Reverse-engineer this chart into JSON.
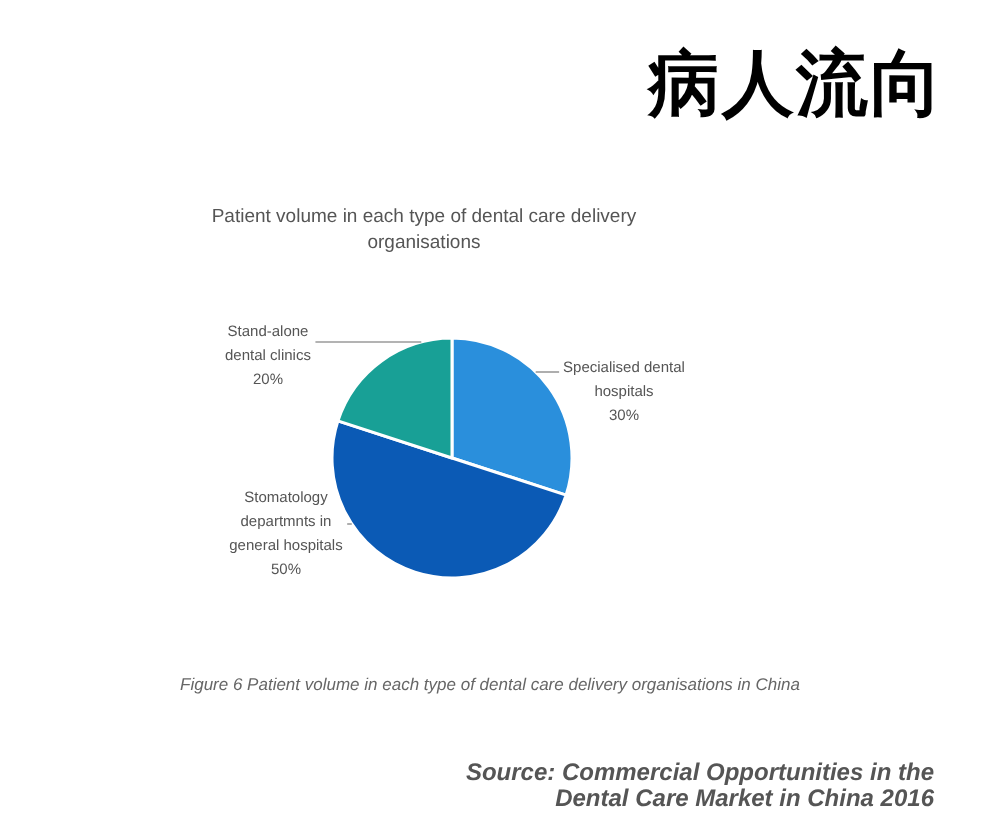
{
  "chart_data": {
    "type": "pie",
    "title": "病人流向",
    "subtitle": "Patient volume in each type of dental care delivery\norganisations",
    "categories": [
      "Specialised dental\nhospitals",
      "Stomatology\ndepartmnts in\ngeneral hospitals",
      "Stand-alone\ndental clinics"
    ],
    "values": [
      30,
      50,
      20
    ],
    "colors": [
      "#2a8fdc",
      "#0b5ab5",
      "#18a096"
    ],
    "value_labels": [
      "30%",
      "50%",
      "20%"
    ],
    "annotations": [
      "Figure 6 Patient volume in each type of dental care delivery organisations in China",
      "Source: Commercial Opportunities in the\nDental Care Market in China 2016"
    ]
  }
}
